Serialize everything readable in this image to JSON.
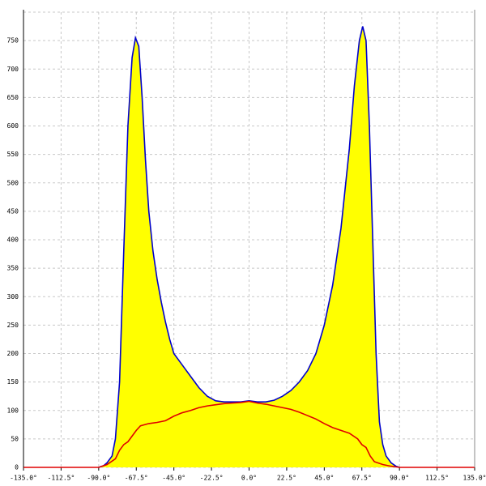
{
  "chart_data": {
    "type": "line",
    "xlim": [
      -135,
      135
    ],
    "ylim": [
      0,
      800
    ],
    "xticks": [
      {
        "value": -135,
        "label": "-135.0°"
      },
      {
        "value": -112.5,
        "label": "-112.5°"
      },
      {
        "value": -90,
        "label": "-90.0°"
      },
      {
        "value": -67.5,
        "label": "-67.5°"
      },
      {
        "value": -45,
        "label": "-45.0°"
      },
      {
        "value": -22.5,
        "label": "-22.5°"
      },
      {
        "value": 0,
        "label": "0.0°"
      },
      {
        "value": 22.5,
        "label": "22.5°"
      },
      {
        "value": 45,
        "label": "45.0°"
      },
      {
        "value": 67.5,
        "label": "67.5°"
      },
      {
        "value": 90,
        "label": "90.0°"
      },
      {
        "value": 112.5,
        "label": "112.5°"
      },
      {
        "value": 135,
        "label": "135.0°"
      }
    ],
    "yticks": [
      0,
      50,
      100,
      150,
      200,
      250,
      300,
      350,
      400,
      450,
      500,
      550,
      600,
      650,
      700,
      750
    ],
    "grid": true,
    "series": [
      {
        "color": "#0000cc",
        "fill": "#ffff00",
        "x": [
          -90,
          -87,
          -85,
          -82,
          -80,
          -77.5,
          -75,
          -72.5,
          -70,
          -68,
          -66,
          -64,
          -62,
          -60,
          -57.5,
          -55,
          -52.5,
          -50,
          -47.5,
          -45,
          -40,
          -35,
          -30,
          -25,
          -20,
          -15,
          -10,
          -5,
          0,
          5,
          10,
          15,
          20,
          25,
          30,
          35,
          40,
          45,
          50,
          55,
          60,
          63,
          66,
          68,
          70,
          72,
          74,
          76,
          78,
          80,
          82,
          85,
          88,
          90
        ],
        "values": [
          0,
          3,
          8,
          20,
          50,
          150,
          380,
          600,
          720,
          755,
          740,
          650,
          540,
          450,
          380,
          330,
          290,
          255,
          225,
          200,
          180,
          160,
          140,
          125,
          117,
          115,
          115,
          115,
          117,
          115,
          115,
          118,
          125,
          135,
          150,
          170,
          200,
          250,
          320,
          420,
          560,
          670,
          750,
          775,
          750,
          600,
          400,
          200,
          80,
          40,
          20,
          8,
          2,
          0
        ]
      },
      {
        "color": "#e00000",
        "x": [
          -135,
          -90,
          -85,
          -80,
          -77.5,
          -75,
          -72.5,
          -70,
          -67.5,
          -65,
          -60,
          -55,
          -50,
          -45,
          -40,
          -35,
          -30,
          -25,
          -20,
          -15,
          -10,
          -5,
          0,
          5,
          10,
          15,
          20,
          25,
          30,
          35,
          40,
          45,
          50,
          55,
          60,
          65,
          67.5,
          70,
          72.5,
          75,
          80,
          85,
          90,
          135
        ],
        "values": [
          0,
          0,
          5,
          15,
          30,
          40,
          45,
          55,
          65,
          73,
          77,
          79,
          82,
          90,
          96,
          100,
          105,
          108,
          110,
          112,
          113,
          114,
          116,
          113,
          111,
          108,
          105,
          102,
          97,
          91,
          85,
          77,
          70,
          65,
          60,
          50,
          40,
          35,
          20,
          10,
          5,
          2,
          0,
          0
        ]
      }
    ]
  }
}
